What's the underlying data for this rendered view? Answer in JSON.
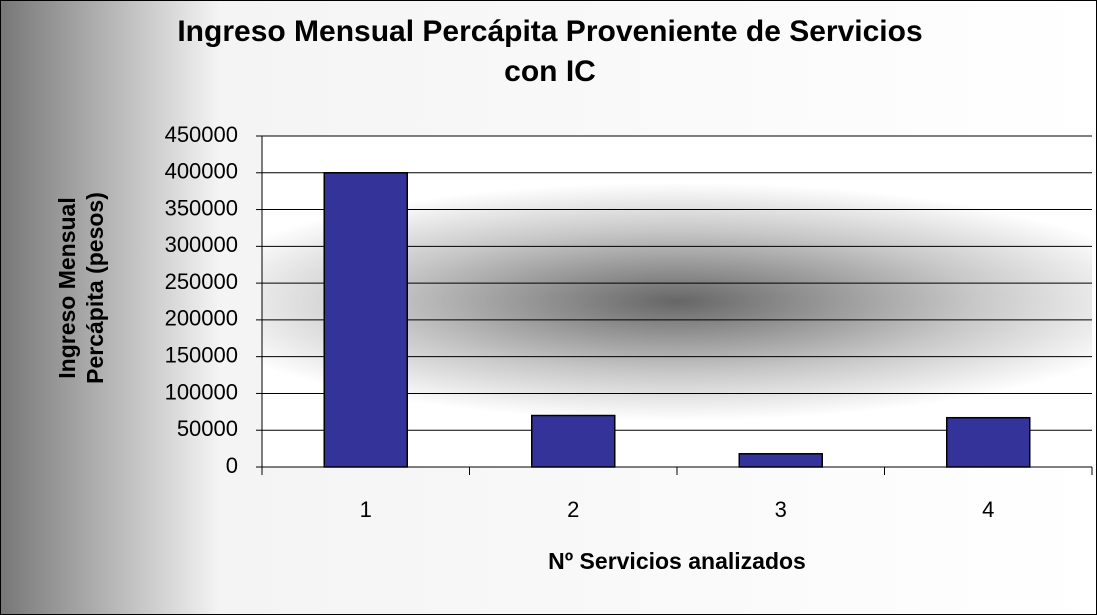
{
  "chart_data": {
    "type": "bar",
    "title": "Ingreso Mensual Percápita Proveniente de Servicios con IC",
    "y_label": "Ingreso Mensual Percápita (pesos)",
    "x_label": "Nº Servicios analizados",
    "categories": [
      "1",
      "2",
      "3",
      "4"
    ],
    "values": [
      400000,
      70000,
      18000,
      67000
    ],
    "color": "#333399",
    "ylim": [
      0,
      450000
    ],
    "yticks": [
      0,
      50000,
      100000,
      150000,
      200000,
      250000,
      300000,
      350000,
      400000,
      450000
    ],
    "grid": true
  }
}
